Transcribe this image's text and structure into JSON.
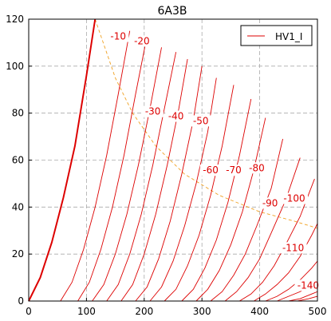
{
  "chart_data": {
    "type": "line",
    "title": "6A3B",
    "xlabel": "",
    "ylabel": "",
    "xlim": [
      0,
      500
    ],
    "ylim": [
      0,
      120
    ],
    "xticks": [
      "0",
      "100",
      "200",
      "300",
      "400",
      "500"
    ],
    "yticks": [
      "0",
      "20",
      "40",
      "60",
      "80",
      "100",
      "120"
    ],
    "grid": true,
    "legend": {
      "position": "top-right",
      "entries": [
        "HV1_I"
      ]
    },
    "colors": {
      "curves": "#dd0000",
      "load_line": "#f0a020",
      "grid": "#aaaaaa"
    },
    "series": [
      {
        "name": "HV1_I",
        "label": "",
        "bold": true,
        "x": [
          0,
          20,
          40,
          60,
          80,
          100,
          115
        ],
        "y": [
          0,
          10,
          25,
          44,
          66,
          96,
          120
        ]
      },
      {
        "label": "-10",
        "x": [
          55,
          75,
          95,
          115,
          135,
          155,
          175
        ],
        "y": [
          0,
          8,
          22,
          40,
          62,
          88,
          115
        ]
      },
      {
        "label": "-20",
        "x": [
          85,
          105,
          125,
          145,
          165,
          185,
          205
        ],
        "y": [
          0,
          8,
          22,
          40,
          62,
          88,
          113
        ]
      },
      {
        "label": "-30",
        "x": [
          110,
          130,
          150,
          170,
          190,
          210,
          230
        ],
        "y": [
          0,
          7,
          20,
          37,
          58,
          82,
          108
        ]
      },
      {
        "label": "-40",
        "x": [
          135,
          155,
          175,
          195,
          215,
          235,
          255
        ],
        "y": [
          0,
          7,
          20,
          37,
          58,
          82,
          106
        ]
      },
      {
        "label": "-50",
        "x": [
          160,
          180,
          200,
          220,
          240,
          260,
          275
        ],
        "y": [
          0,
          7,
          20,
          37,
          58,
          82,
          103
        ]
      },
      {
        "label": "-60",
        "x": [
          185,
          205,
          225,
          245,
          265,
          285,
          300
        ],
        "y": [
          0,
          6,
          18,
          34,
          54,
          77,
          100
        ]
      },
      {
        "label": "-70",
        "x": [
          210,
          230,
          250,
          270,
          290,
          310,
          325
        ],
        "y": [
          0,
          6,
          17,
          32,
          50,
          72,
          95
        ]
      },
      {
        "label": "-80",
        "x": [
          235,
          255,
          275,
          295,
          315,
          335,
          355
        ],
        "y": [
          0,
          5,
          15,
          28,
          45,
          66,
          92
        ]
      },
      {
        "label": "-90",
        "x": [
          265,
          285,
          305,
          325,
          345,
          365,
          385
        ],
        "y": [
          0,
          5,
          14,
          26,
          42,
          62,
          86
        ]
      },
      {
        "label": "-100",
        "x": [
          290,
          310,
          330,
          350,
          370,
          390,
          410
        ],
        "y": [
          0,
          5,
          13,
          24,
          38,
          56,
          78
        ]
      },
      {
        "label": "-110",
        "x": [
          315,
          335,
          355,
          375,
          395,
          420,
          440
        ],
        "y": [
          0,
          4,
          11,
          20,
          32,
          48,
          69
        ]
      },
      {
        "label": "",
        "x": [
          340,
          360,
          380,
          400,
          420,
          445,
          470
        ],
        "y": [
          0,
          4,
          10,
          18,
          29,
          43,
          61
        ]
      },
      {
        "label": "",
        "x": [
          365,
          385,
          405,
          425,
          445,
          470,
          495
        ],
        "y": [
          0,
          3,
          8,
          15,
          24,
          36,
          52
        ]
      },
      {
        "label": "",
        "x": [
          390,
          410,
          430,
          450,
          470,
          490,
          500
        ],
        "y": [
          0,
          3,
          7,
          12,
          19,
          28,
          33
        ]
      },
      {
        "label": "",
        "x": [
          410,
          430,
          450,
          470,
          490,
          500
        ],
        "y": [
          0,
          2,
          5,
          9,
          14,
          17
        ]
      },
      {
        "label": "",
        "x": [
          430,
          450,
          470,
          490,
          500
        ],
        "y": [
          0,
          2,
          4,
          7,
          9
        ]
      },
      {
        "label": "",
        "x": [
          450,
          470,
          490,
          500
        ],
        "y": [
          0,
          1,
          3,
          4
        ]
      },
      {
        "label": "-140",
        "x": [
          465,
          485,
          500
        ],
        "y": [
          0,
          1,
          2
        ]
      }
    ],
    "load_line": {
      "x": [
        115,
        150,
        180,
        220,
        270,
        330,
        400,
        460,
        500
      ],
      "y": [
        120,
        95,
        80,
        66,
        54,
        45,
        38,
        34,
        31
      ]
    },
    "curve_labels": [
      {
        "text": "-10",
        "x": 155,
        "y": 112
      },
      {
        "text": "-20",
        "x": 196,
        "y": 110
      },
      {
        "text": "-30",
        "x": 215,
        "y": 80
      },
      {
        "text": "-40",
        "x": 255,
        "y": 78
      },
      {
        "text": "-50",
        "x": 298,
        "y": 76
      },
      {
        "text": "-60",
        "x": 315,
        "y": 55
      },
      {
        "text": "-70",
        "x": 355,
        "y": 55
      },
      {
        "text": "-80",
        "x": 395,
        "y": 56
      },
      {
        "text": "-90",
        "x": 418,
        "y": 41
      },
      {
        "text": "-100",
        "x": 460,
        "y": 43
      },
      {
        "text": "-110",
        "x": 458,
        "y": 22
      },
      {
        "text": "-140",
        "x": 484,
        "y": 6
      }
    ]
  }
}
